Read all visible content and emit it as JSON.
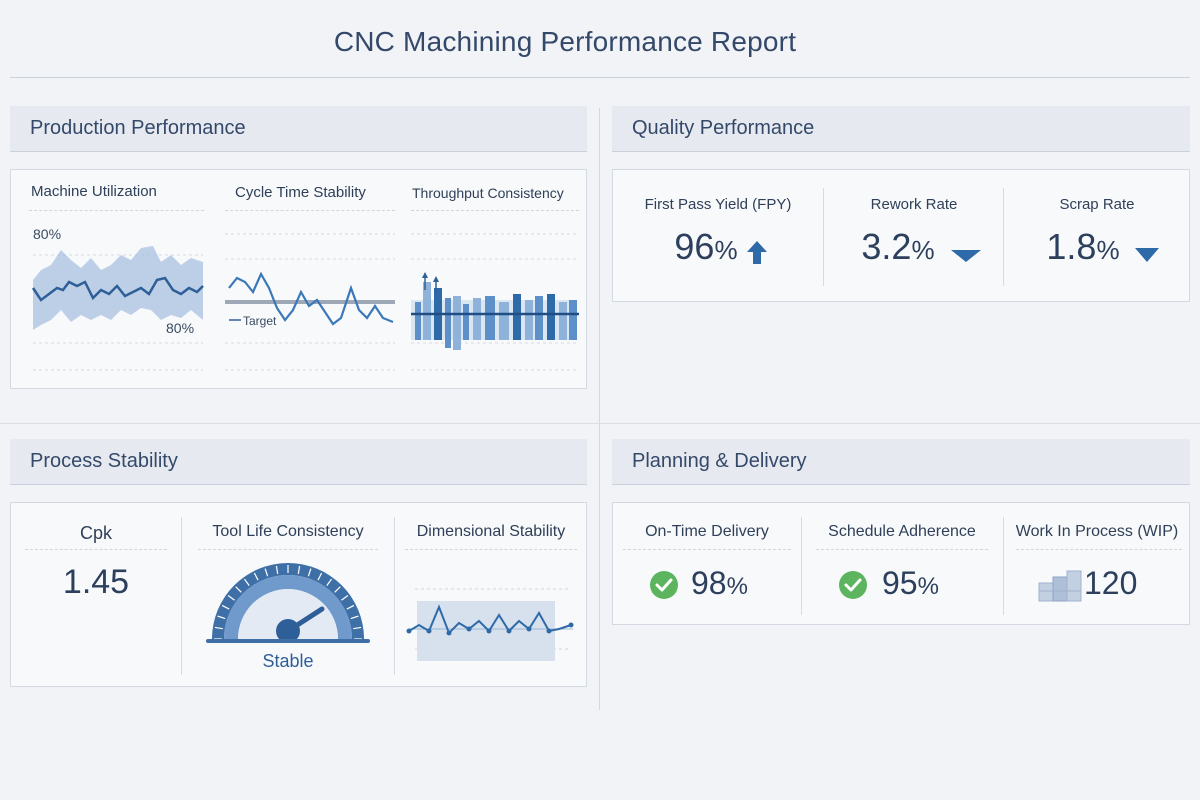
{
  "report": {
    "title": "CNC Machining Performance Report"
  },
  "production": {
    "header": "Production Performance",
    "utilization": {
      "title": "Machine Utilization",
      "top_label": "80%",
      "bottom_label": "80%"
    },
    "cycle_time": {
      "title": "Cycle Time Stability",
      "target_label": "Target"
    },
    "throughput": {
      "title": "Throughput Consistency"
    }
  },
  "quality": {
    "header": "Quality Performance",
    "fpy": {
      "label": "First Pass Yield (FPY)",
      "value": "96",
      "unit": "%",
      "trend": "up"
    },
    "rework": {
      "label": "Rework Rate",
      "value": "3.2",
      "unit": "%",
      "trend": "down"
    },
    "scrap": {
      "label": "Scrap Rate",
      "value": "1.8",
      "unit": "%",
      "trend": "down"
    }
  },
  "stability": {
    "header": "Process Stability",
    "cpk": {
      "label": "Cpk",
      "value": "1.45"
    },
    "tool_life": {
      "label": "Tool Life Consistency",
      "status": "Stable"
    },
    "dimensional": {
      "label": "Dimensional Stability"
    }
  },
  "planning": {
    "header": "Planning & Delivery",
    "on_time": {
      "label": "On-Time Delivery",
      "value": "98",
      "unit": "%",
      "icon": "check-circle-icon"
    },
    "schedule": {
      "label": "Schedule Adherence",
      "value": "95",
      "unit": "%",
      "icon": "check-circle-icon"
    },
    "wip": {
      "label": "Work In Process (WIP)",
      "value": "120",
      "icon": "boxes-icon"
    }
  },
  "colors": {
    "accent": "#2f6aa8",
    "band": "#a9c0e0",
    "success": "#5cb55e",
    "text": "#2c3f5c"
  }
}
